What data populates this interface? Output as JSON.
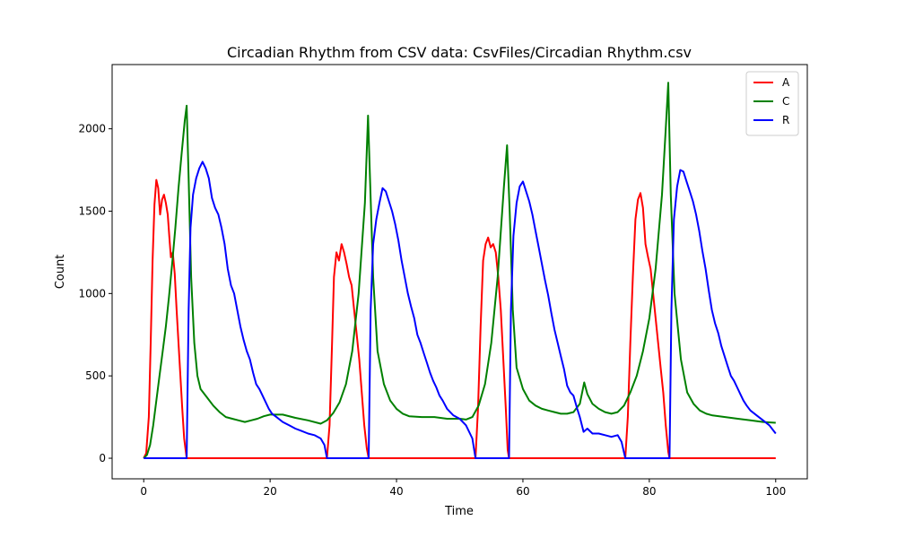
{
  "chart_data": {
    "type": "line",
    "title": "Circadian Rhythm from CSV data: CsvFiles/Circadian Rhythm.csv",
    "xlabel": "Time",
    "ylabel": "Count",
    "xlim": [
      -5,
      105
    ],
    "ylim": [
      -125,
      2390
    ],
    "xticks": [
      0,
      20,
      40,
      60,
      80,
      100
    ],
    "yticks": [
      0,
      500,
      1000,
      1500,
      2000
    ],
    "grid": false,
    "legend_position": "top-right",
    "series": [
      {
        "name": "A",
        "color": "#ff0000",
        "points": [
          [
            0,
            0
          ],
          [
            0.4,
            30
          ],
          [
            0.8,
            250
          ],
          [
            1.1,
            700
          ],
          [
            1.4,
            1200
          ],
          [
            1.7,
            1540
          ],
          [
            2.0,
            1690
          ],
          [
            2.3,
            1640
          ],
          [
            2.6,
            1480
          ],
          [
            2.9,
            1570
          ],
          [
            3.2,
            1600
          ],
          [
            3.5,
            1550
          ],
          [
            3.8,
            1480
          ],
          [
            4.1,
            1320
          ],
          [
            4.3,
            1220
          ],
          [
            4.6,
            1250
          ],
          [
            4.9,
            1120
          ],
          [
            5.2,
            900
          ],
          [
            5.5,
            700
          ],
          [
            5.8,
            500
          ],
          [
            6.1,
            300
          ],
          [
            6.4,
            120
          ],
          [
            6.7,
            30
          ],
          [
            6.8,
            0
          ],
          [
            29,
            0
          ],
          [
            29.4,
            200
          ],
          [
            29.8,
            700
          ],
          [
            30.1,
            1100
          ],
          [
            30.5,
            1250
          ],
          [
            30.9,
            1200
          ],
          [
            31.3,
            1300
          ],
          [
            31.7,
            1250
          ],
          [
            32.1,
            1180
          ],
          [
            32.5,
            1100
          ],
          [
            32.9,
            1050
          ],
          [
            33.3,
            900
          ],
          [
            33.7,
            750
          ],
          [
            34.1,
            600
          ],
          [
            34.5,
            400
          ],
          [
            34.9,
            200
          ],
          [
            35.3,
            60
          ],
          [
            35.6,
            0
          ],
          [
            52.5,
            0
          ],
          [
            52.9,
            300
          ],
          [
            53.3,
            800
          ],
          [
            53.7,
            1200
          ],
          [
            54.1,
            1300
          ],
          [
            54.5,
            1340
          ],
          [
            54.9,
            1280
          ],
          [
            55.3,
            1300
          ],
          [
            55.7,
            1250
          ],
          [
            56.1,
            1100
          ],
          [
            56.5,
            900
          ],
          [
            56.9,
            600
          ],
          [
            57.3,
            300
          ],
          [
            57.6,
            50
          ],
          [
            57.8,
            0
          ],
          [
            76.2,
            0
          ],
          [
            76.6,
            250
          ],
          [
            77.0,
            700
          ],
          [
            77.4,
            1100
          ],
          [
            77.8,
            1450
          ],
          [
            78.2,
            1570
          ],
          [
            78.6,
            1610
          ],
          [
            79.0,
            1520
          ],
          [
            79.4,
            1300
          ],
          [
            79.8,
            1220
          ],
          [
            80.2,
            1150
          ],
          [
            80.6,
            1000
          ],
          [
            81.0,
            850
          ],
          [
            81.4,
            700
          ],
          [
            81.8,
            550
          ],
          [
            82.2,
            400
          ],
          [
            82.6,
            200
          ],
          [
            83.0,
            40
          ],
          [
            83.2,
            0
          ],
          [
            100,
            0
          ]
        ]
      },
      {
        "name": "C",
        "color": "#008000",
        "points": [
          [
            0,
            0
          ],
          [
            0.5,
            20
          ],
          [
            1,
            80
          ],
          [
            1.5,
            200
          ],
          [
            2,
            350
          ],
          [
            2.5,
            500
          ],
          [
            3,
            650
          ],
          [
            3.5,
            800
          ],
          [
            4,
            980
          ],
          [
            4.5,
            1180
          ],
          [
            5,
            1400
          ],
          [
            5.5,
            1640
          ],
          [
            6,
            1850
          ],
          [
            6.5,
            2050
          ],
          [
            6.8,
            2140
          ],
          [
            7.1,
            1700
          ],
          [
            7.5,
            1100
          ],
          [
            8,
            700
          ],
          [
            8.5,
            500
          ],
          [
            9,
            420
          ],
          [
            10,
            370
          ],
          [
            11,
            320
          ],
          [
            12,
            280
          ],
          [
            13,
            250
          ],
          [
            14,
            240
          ],
          [
            15,
            230
          ],
          [
            16,
            220
          ],
          [
            17,
            230
          ],
          [
            18,
            240
          ],
          [
            19,
            255
          ],
          [
            20,
            265
          ],
          [
            22,
            265
          ],
          [
            24,
            245
          ],
          [
            26,
            230
          ],
          [
            28,
            210
          ],
          [
            29,
            230
          ],
          [
            30,
            275
          ],
          [
            31,
            340
          ],
          [
            32,
            450
          ],
          [
            33,
            650
          ],
          [
            34,
            1000
          ],
          [
            35,
            1550
          ],
          [
            35.5,
            2080
          ],
          [
            35.8,
            1700
          ],
          [
            36.3,
            1100
          ],
          [
            37,
            650
          ],
          [
            38,
            450
          ],
          [
            39,
            350
          ],
          [
            40,
            300
          ],
          [
            41,
            270
          ],
          [
            42,
            255
          ],
          [
            44,
            250
          ],
          [
            46,
            250
          ],
          [
            48,
            240
          ],
          [
            50,
            240
          ],
          [
            51,
            235
          ],
          [
            52,
            250
          ],
          [
            53,
            320
          ],
          [
            54,
            450
          ],
          [
            55,
            700
          ],
          [
            56,
            1100
          ],
          [
            57,
            1650
          ],
          [
            57.5,
            1900
          ],
          [
            57.9,
            1500
          ],
          [
            58.4,
            900
          ],
          [
            59,
            550
          ],
          [
            60,
            420
          ],
          [
            61,
            350
          ],
          [
            62,
            320
          ],
          [
            63,
            300
          ],
          [
            64,
            290
          ],
          [
            65,
            280
          ],
          [
            66,
            270
          ],
          [
            67,
            270
          ],
          [
            68,
            280
          ],
          [
            69,
            330
          ],
          [
            69.7,
            460
          ],
          [
            70.2,
            390
          ],
          [
            71,
            330
          ],
          [
            72,
            300
          ],
          [
            73,
            280
          ],
          [
            74,
            270
          ],
          [
            75,
            280
          ],
          [
            76,
            320
          ],
          [
            77,
            400
          ],
          [
            78,
            500
          ],
          [
            79,
            650
          ],
          [
            80,
            850
          ],
          [
            81,
            1150
          ],
          [
            82,
            1600
          ],
          [
            82.6,
            2000
          ],
          [
            83,
            2280
          ],
          [
            83.4,
            1600
          ],
          [
            84,
            1000
          ],
          [
            85,
            600
          ],
          [
            86,
            400
          ],
          [
            87,
            330
          ],
          [
            88,
            290
          ],
          [
            89,
            270
          ],
          [
            90,
            260
          ],
          [
            92,
            250
          ],
          [
            94,
            240
          ],
          [
            96,
            230
          ],
          [
            98,
            220
          ],
          [
            100,
            215
          ]
        ]
      },
      {
        "name": "R",
        "color": "#0000ff",
        "points": [
          [
            0,
            0
          ],
          [
            6.8,
            0
          ],
          [
            7.1,
            900
          ],
          [
            7.4,
            1400
          ],
          [
            7.8,
            1600
          ],
          [
            8.3,
            1700
          ],
          [
            8.8,
            1760
          ],
          [
            9.3,
            1800
          ],
          [
            9.8,
            1760
          ],
          [
            10.3,
            1700
          ],
          [
            10.8,
            1580
          ],
          [
            11.3,
            1520
          ],
          [
            11.8,
            1480
          ],
          [
            12.3,
            1400
          ],
          [
            12.8,
            1300
          ],
          [
            13.3,
            1150
          ],
          [
            13.8,
            1050
          ],
          [
            14.3,
            1000
          ],
          [
            14.8,
            900
          ],
          [
            15.3,
            800
          ],
          [
            15.8,
            720
          ],
          [
            16.3,
            650
          ],
          [
            16.8,
            600
          ],
          [
            17.3,
            520
          ],
          [
            17.8,
            450
          ],
          [
            18.3,
            420
          ],
          [
            18.8,
            380
          ],
          [
            19.3,
            340
          ],
          [
            19.8,
            300
          ],
          [
            20.3,
            270
          ],
          [
            21,
            250
          ],
          [
            22,
            220
          ],
          [
            23,
            200
          ],
          [
            24,
            180
          ],
          [
            25,
            165
          ],
          [
            26,
            150
          ],
          [
            27,
            140
          ],
          [
            28,
            120
          ],
          [
            28.6,
            80
          ],
          [
            29,
            0
          ],
          [
            35.6,
            0
          ],
          [
            35.9,
            900
          ],
          [
            36.3,
            1300
          ],
          [
            36.8,
            1450
          ],
          [
            37.3,
            1550
          ],
          [
            37.8,
            1640
          ],
          [
            38.3,
            1620
          ],
          [
            38.8,
            1560
          ],
          [
            39.3,
            1500
          ],
          [
            39.8,
            1420
          ],
          [
            40.3,
            1320
          ],
          [
            40.8,
            1200
          ],
          [
            41.3,
            1100
          ],
          [
            41.8,
            1000
          ],
          [
            42.3,
            920
          ],
          [
            42.8,
            850
          ],
          [
            43.3,
            750
          ],
          [
            43.8,
            700
          ],
          [
            44.3,
            640
          ],
          [
            44.8,
            580
          ],
          [
            45.3,
            520
          ],
          [
            45.8,
            470
          ],
          [
            46.3,
            430
          ],
          [
            46.8,
            380
          ],
          [
            47.3,
            350
          ],
          [
            48,
            300
          ],
          [
            49,
            260
          ],
          [
            50,
            240
          ],
          [
            51,
            200
          ],
          [
            52,
            120
          ],
          [
            52.5,
            0
          ],
          [
            57.8,
            0
          ],
          [
            58.1,
            900
          ],
          [
            58.5,
            1350
          ],
          [
            59,
            1550
          ],
          [
            59.5,
            1650
          ],
          [
            60,
            1680
          ],
          [
            60.5,
            1620
          ],
          [
            61,
            1560
          ],
          [
            61.5,
            1480
          ],
          [
            62,
            1380
          ],
          [
            62.5,
            1280
          ],
          [
            63,
            1180
          ],
          [
            63.5,
            1080
          ],
          [
            64,
            990
          ],
          [
            64.5,
            880
          ],
          [
            65,
            780
          ],
          [
            65.5,
            700
          ],
          [
            66,
            620
          ],
          [
            66.5,
            540
          ],
          [
            67,
            440
          ],
          [
            67.5,
            400
          ],
          [
            68,
            380
          ],
          [
            68.6,
            300
          ],
          [
            69,
            250
          ],
          [
            69.6,
            160
          ],
          [
            70.2,
            180
          ],
          [
            71,
            150
          ],
          [
            72,
            150
          ],
          [
            73,
            140
          ],
          [
            74,
            130
          ],
          [
            75,
            140
          ],
          [
            75.6,
            100
          ],
          [
            76.2,
            0
          ],
          [
            83.2,
            0
          ],
          [
            83.5,
            900
          ],
          [
            83.9,
            1450
          ],
          [
            84.4,
            1650
          ],
          [
            84.9,
            1750
          ],
          [
            85.4,
            1740
          ],
          [
            85.9,
            1680
          ],
          [
            86.4,
            1620
          ],
          [
            86.9,
            1560
          ],
          [
            87.4,
            1480
          ],
          [
            87.9,
            1380
          ],
          [
            88.4,
            1260
          ],
          [
            88.9,
            1150
          ],
          [
            89.4,
            1020
          ],
          [
            89.9,
            900
          ],
          [
            90.4,
            820
          ],
          [
            90.9,
            760
          ],
          [
            91.4,
            680
          ],
          [
            91.9,
            620
          ],
          [
            92.4,
            560
          ],
          [
            92.9,
            500
          ],
          [
            93.4,
            470
          ],
          [
            93.9,
            430
          ],
          [
            94.4,
            390
          ],
          [
            94.9,
            350
          ],
          [
            95.4,
            320
          ],
          [
            96,
            290
          ],
          [
            97,
            260
          ],
          [
            98,
            230
          ],
          [
            99,
            200
          ],
          [
            100,
            150
          ]
        ]
      }
    ]
  }
}
